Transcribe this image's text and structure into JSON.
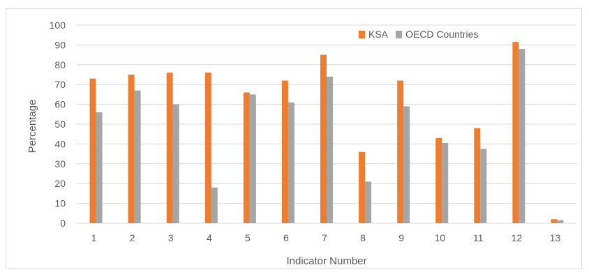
{
  "chart_data": {
    "type": "bar",
    "categories": [
      "1",
      "2",
      "3",
      "4",
      "5",
      "6",
      "7",
      "8",
      "9",
      "10",
      "11",
      "12",
      "13"
    ],
    "series": [
      {
        "name": "KSA",
        "color": "#ed7d31",
        "values": [
          73,
          75,
          76,
          76,
          66,
          72,
          85,
          36,
          72,
          43,
          48,
          91.5,
          2
        ]
      },
      {
        "name": "OECD Countries",
        "color": "#a5a5a5",
        "values": [
          56,
          67,
          60,
          18,
          65,
          61,
          74,
          21,
          59,
          40.5,
          37.5,
          88,
          1.5
        ]
      }
    ],
    "xlabel": "Indicator Number",
    "ylabel": "Percentage",
    "ylim": [
      0,
      100
    ],
    "yticks": [
      0,
      10,
      20,
      30,
      40,
      50,
      60,
      70,
      80,
      90,
      100
    ],
    "grid": true,
    "legend": "top-right",
    "gridColor": "#d9d9d9"
  }
}
